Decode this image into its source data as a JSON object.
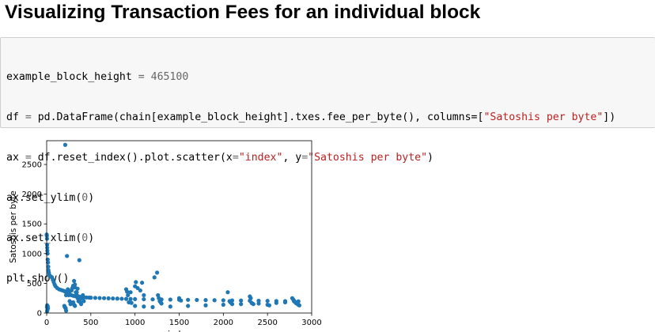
{
  "heading": "Visualizing Transaction Fees for an individual block",
  "code": {
    "line1_a": "example_block_height ",
    "line1_op": "=",
    "line1_sp": " ",
    "line1_num": "465100",
    "line2_a": "df ",
    "line2_op": "=",
    "line2_b": " pd.DataFrame(chain[example_block_height].txes.fee_per_byte(), columns=[",
    "line2_str": "\"Satoshis per byte\"",
    "line2_c": "])",
    "line3_a": "ax ",
    "line3_op": "=",
    "line3_b": " df.reset_index().plot.scatter(x",
    "line3_op2": "=",
    "line3_str1": "\"index\"",
    "line3_c": ", y",
    "line3_op3": "=",
    "line3_str2": "\"Satoshis per byte\"",
    "line3_d": ")",
    "line4_a": "ax.set_ylim(",
    "line4_num": "0",
    "line4_b": ")",
    "line5_a": "ax.set_xlim(",
    "line5_num": "0",
    "line5_b": ")",
    "line6": "plt.show()"
  },
  "colors": {
    "marker": "#1f77b4",
    "string": "#ba2121",
    "number": "#666666"
  },
  "chart_data": {
    "type": "scatter",
    "xlabel": "index",
    "ylabel": "Satoshis per byte",
    "xlim": [
      0,
      3000
    ],
    "ylim": [
      0,
      2900
    ],
    "xticks": [
      0,
      500,
      1000,
      1500,
      2000,
      2500,
      3000
    ],
    "yticks": [
      0,
      500,
      1000,
      1500,
      2000,
      2500
    ],
    "grid": false,
    "legend": "none",
    "series": [
      {
        "x": [
          0,
          2,
          4,
          5,
          6,
          8,
          10,
          12,
          15,
          18,
          20,
          25,
          30,
          40,
          50,
          60,
          70,
          80,
          90,
          100,
          120,
          140,
          160,
          180,
          200,
          210,
          220,
          230,
          240,
          250,
          260,
          280,
          300,
          320,
          340,
          360,
          380,
          400,
          420,
          450,
          480,
          500,
          550,
          600,
          650,
          700,
          750,
          800,
          850,
          900,
          950,
          1000,
          1100,
          1200,
          1300,
          1400,
          1500,
          1600,
          1700,
          1800,
          1900,
          2000,
          2100,
          2200,
          2300,
          2400,
          2500,
          2600,
          2700,
          2800,
          2850,
          210,
          205,
          215,
          230,
          240,
          250,
          260,
          270,
          280,
          290,
          300,
          310,
          320,
          330,
          340,
          350,
          360,
          370,
          380,
          390,
          400,
          410,
          420,
          300,
          310,
          320,
          340,
          360,
          380,
          350,
          320,
          300,
          280,
          260,
          240,
          220,
          200,
          210,
          3,
          6,
          9,
          12,
          15,
          5,
          8,
          370,
          220,
          900,
          910,
          920,
          930,
          1000,
          1010,
          1030,
          1060,
          1080,
          1100,
          950,
          960,
          1220,
          1250,
          1260,
          1270,
          1280,
          1290,
          1300,
          1500,
          1520,
          2050,
          2070,
          2080,
          2100,
          2300,
          2310,
          2320,
          2330,
          2340,
          2500,
          2520,
          2780,
          2790,
          2800,
          2810,
          2820,
          2830,
          2840,
          2850,
          2860,
          1000,
          1100,
          1200,
          1400,
          1600,
          1800,
          2000,
          2200,
          2400,
          2600,
          2700
        ],
        "y": [
          1320,
          1300,
          1250,
          1150,
          1100,
          1050,
          1000,
          900,
          850,
          780,
          720,
          680,
          640,
          620,
          610,
          600,
          560,
          520,
          480,
          450,
          420,
          400,
          390,
          380,
          370,
          360,
          350,
          340,
          330,
          320,
          310,
          300,
          290,
          285,
          280,
          275,
          270,
          268,
          265,
          262,
          260,
          258,
          255,
          252,
          250,
          248,
          245,
          243,
          240,
          238,
          236,
          234,
          232,
          230,
          228,
          226,
          224,
          222,
          220,
          218,
          216,
          214,
          212,
          210,
          208,
          206,
          204,
          202,
          200,
          198,
          196,
          2830,
          100,
          80,
          960,
          400,
          300,
          200,
          150,
          380,
          420,
          460,
          540,
          480,
          350,
          300,
          250,
          200,
          220,
          180,
          150,
          250,
          300,
          200,
          180,
          140,
          120,
          350,
          280,
          240,
          410,
          430,
          440,
          380,
          360,
          330,
          300,
          120,
          90,
          100,
          130,
          60,
          110,
          80,
          30,
          50,
          890,
          40,
          400,
          360,
          300,
          180,
          450,
          520,
          420,
          380,
          510,
          300,
          350,
          170,
          600,
          680,
          300,
          250,
          200,
          180,
          160,
          250,
          210,
          350,
          200,
          180,
          150,
          280,
          250,
          170,
          160,
          150,
          140,
          130,
          250,
          230,
          210,
          190,
          170,
          160,
          150,
          140,
          130,
          120,
          110,
          100,
          110,
          120,
          130,
          140,
          150,
          160,
          170,
          180
        ]
      }
    ]
  }
}
